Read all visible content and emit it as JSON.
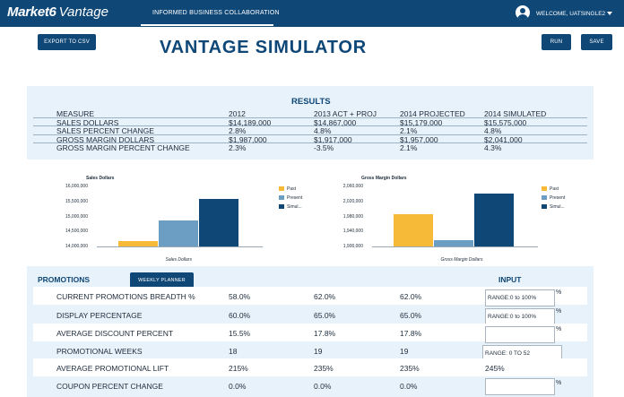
{
  "header": {
    "logo_brand": "Market6",
    "logo_product": "Vantage",
    "nav_tab": "INFORMED BUSINESS COLLABORATION",
    "welcome": "WELCOME, UATSINGLE2"
  },
  "toolbar": {
    "export_label": "EXPORT TO CSV",
    "title": "VANTAGE SIMULATOR",
    "run_label": "RUN",
    "save_label": "SAVE"
  },
  "results": {
    "title": "RESULTS",
    "headers": [
      "MEASURE",
      "2012",
      "2013 ACT + PROJ",
      "2014 PROJECTED",
      "2014 SIMULATED"
    ],
    "rows": [
      [
        "SALES DOLLARS",
        "$14,189,000",
        "$14,867,000",
        "$15,179,000",
        "$15,575,000"
      ],
      [
        "SALES PERCENT CHANGE",
        "2.8%",
        "4.8%",
        "2.1%",
        "4.8%"
      ],
      [
        "GROSS MARGIN DOLLARS",
        "$1,987,000",
        "$1,917,000",
        "$1,957,000",
        "$2,041,000"
      ],
      [
        "GROSS MARGIN PERCENT CHANGE",
        "2.3%",
        "-3.5%",
        "2.1%",
        "4.3%"
      ]
    ]
  },
  "chart_data": [
    {
      "type": "bar",
      "title": "Sales Dollars",
      "xlabel": "Sales Dollars",
      "categories": [
        "Past",
        "Present",
        "Simul..."
      ],
      "values": [
        14189000,
        14867000,
        15575000
      ],
      "ylim": [
        14000000,
        16000000
      ],
      "yticks": [
        "16,000,000",
        "15,500,000",
        "15,000,000",
        "14,500,000",
        "14,000,000"
      ],
      "colors": [
        "#f6b938",
        "#6c9ec4",
        "#0f4777"
      ],
      "legend": "right",
      "grid": false
    },
    {
      "type": "bar",
      "title": "Gross Margin Dollars",
      "xlabel": "Gross Margin Dollars",
      "categories": [
        "Past",
        "Present",
        "Simul..."
      ],
      "values": [
        1987000,
        1917000,
        2041000
      ],
      "ylim": [
        1900000,
        2060000
      ],
      "yticks": [
        "2,060,000",
        "2,020,000",
        "1,980,000",
        "1,940,000",
        "1,900,000"
      ],
      "colors": [
        "#f6b938",
        "#6c9ec4",
        "#0f4777"
      ],
      "legend": "right",
      "grid": false
    }
  ],
  "promotions": {
    "title": "PROMOTIONS",
    "weekly_label": "WEEKLY PLANNER",
    "input_title": "INPUT",
    "rows": [
      {
        "label": "CURRENT PROMOTIONS BREADTH %",
        "v1": "58.0%",
        "v2": "62.0%",
        "v3": "62.0%",
        "input": "RANGE:0 to 100%",
        "pct": "%"
      },
      {
        "label": "DISPLAY PERCENTAGE",
        "v1": "60.0%",
        "v2": "65.0%",
        "v3": "65.0%",
        "input": "RANGE:0 to 100%",
        "pct": "%"
      },
      {
        "label": "AVERAGE DISCOUNT PERCENT",
        "v1": "15.5%",
        "v2": "17.8%",
        "v3": "17.8%",
        "input": "",
        "pct": "%"
      },
      {
        "label": "PROMOTIONAL WEEKS",
        "v1": "18",
        "v2": "19",
        "v3": "19",
        "input": "RANGE: 0 TO 52",
        "pct": ""
      },
      {
        "label": "AVERAGE PROMOTIONAL LIFT",
        "v1": "215%",
        "v2": "235%",
        "v3": "235%",
        "input_text": "245%"
      },
      {
        "label": "COUPON PERCENT CHANGE",
        "v1": "0.0%",
        "v2": "0.0%",
        "v3": "0.0%",
        "input": "",
        "pct": "%"
      }
    ]
  }
}
